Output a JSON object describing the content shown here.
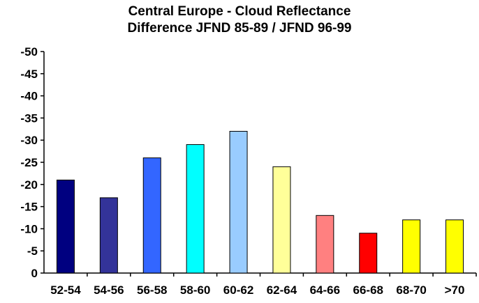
{
  "chart_data": {
    "type": "bar",
    "title_line1": "Central Europe - Cloud Reflectance",
    "title_line2": "Difference JFND 85-89 / JFND 96-99",
    "xlabel": "",
    "ylabel": "",
    "categories": [
      "52-54",
      "54-56",
      "56-58",
      "58-60",
      "60-62",
      "62-64",
      "64-66",
      "66-68",
      "68-70",
      ">70"
    ],
    "values": [
      -21,
      -17,
      -26,
      -29,
      -32,
      -24,
      -13,
      -9,
      -12,
      -12
    ],
    "colors": [
      "#000080",
      "#333399",
      "#3366ff",
      "#00ffff",
      "#99ccff",
      "#ffff99",
      "#ff8080",
      "#ff0000",
      "#ffff00",
      "#ffff00"
    ],
    "y_ticks": [
      "-50",
      "-45",
      "-40",
      "-35",
      "-30",
      "-25",
      "-20",
      "-15",
      "-10",
      "-5",
      "0"
    ],
    "ylim": [
      0,
      -50
    ],
    "y_axis_inverted": true,
    "grid": false,
    "legend": "none"
  }
}
